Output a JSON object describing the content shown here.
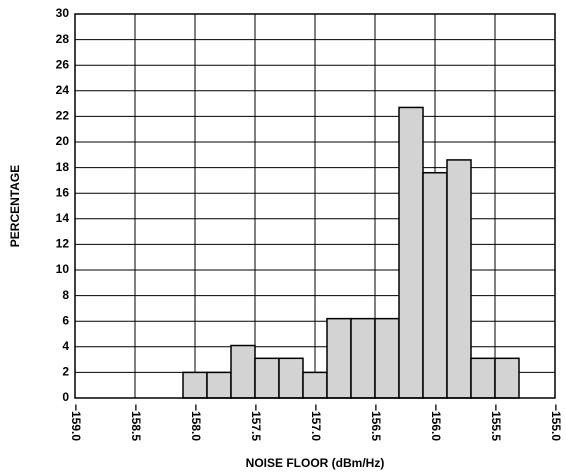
{
  "chart_data": {
    "type": "histogram",
    "xlabel": "NOISE FLOOR (dBm/Hz)",
    "ylabel": "PERCENTAGE",
    "bins": [
      -158.1,
      -157.9,
      -157.7,
      -157.5,
      -157.3,
      -157.1,
      -156.9,
      -156.7,
      -156.5,
      -156.3,
      -156.1,
      -155.9,
      -155.7,
      -155.5,
      -155.3
    ],
    "values": [
      2.0,
      2.0,
      4.1,
      3.1,
      3.1,
      2.0,
      6.2,
      6.2,
      6.2,
      22.7,
      17.6,
      18.6,
      3.1,
      3.1
    ],
    "color": "#d3d3d3",
    "xlim": [
      -159.0,
      -155.0
    ],
    "xticks": [
      {
        "value": -159.0,
        "label": "−159.0"
      },
      {
        "value": -158.5,
        "label": "−158.5"
      },
      {
        "value": -158.0,
        "label": "−158.0"
      },
      {
        "value": -157.5,
        "label": "−157.5"
      },
      {
        "value": -157.0,
        "label": "−157.0"
      },
      {
        "value": -156.5,
        "label": "−156.5"
      },
      {
        "value": -156.0,
        "label": "−156.0"
      },
      {
        "value": -155.5,
        "label": "−155.5"
      },
      {
        "value": -155.0,
        "label": "−155.0"
      }
    ],
    "ylim": [
      0,
      30
    ],
    "yticks": [
      0,
      2,
      4,
      6,
      8,
      10,
      12,
      14,
      16,
      18,
      20,
      22,
      24,
      26,
      28,
      30
    ],
    "grid": true
  }
}
